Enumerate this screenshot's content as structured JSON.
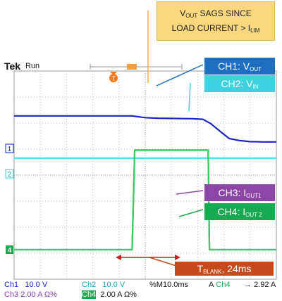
{
  "header": {
    "brand": "Tek",
    "status": "Run"
  },
  "annotation": {
    "line1": "V",
    "line1_sub": "OUT",
    "line1_rest": " SAGS SINCE",
    "line2": "LOAD CURRENT > I",
    "line2_sub": "LIM"
  },
  "labels": {
    "ch1": {
      "main": "CH1: V",
      "sub": "OUT"
    },
    "ch2": {
      "main": "CH2: V",
      "sub": "IN"
    },
    "ch3": {
      "main": "CH3: I",
      "sub": "OUT1"
    },
    "ch4": {
      "main": "CH4: I",
      "sub": "OUT 2"
    },
    "tblank": {
      "main": "T",
      "sub": "BLANK",
      "rest": ", 24ms"
    }
  },
  "markers": {
    "trigger": "T",
    "ch1": "1",
    "ch2": "2",
    "ch4": "4"
  },
  "readouts": {
    "row1": [
      {
        "ch": "Ch1",
        "value": "10.0 V"
      },
      {
        "ch": "Ch2",
        "value": "10.0 V"
      },
      {
        "ch": "%M",
        "value": "10.0ms"
      },
      {
        "ch": "A",
        "value": "Ch4"
      },
      {
        "ch": "→",
        "value": "2.92 A"
      }
    ],
    "row2": [
      {
        "ch": "Ch3",
        "value": "2.00 A Ω%"
      },
      {
        "ch": "Ch4",
        "value": "2.00 A Ω%"
      }
    ]
  },
  "colors": {
    "ch1": "#1b23c9",
    "ch2": "#34e3f0",
    "ch3": "#9a3cc4",
    "ch4": "#35d35e",
    "annotation_bg": "#fbd77e",
    "tblank_bg": "#c64b1c",
    "arrow": "#c02424"
  },
  "chart_data": {
    "type": "line",
    "x_unit": "ms",
    "xlim": [
      -50,
      50
    ],
    "series": [
      {
        "name": "CH1: VOUT",
        "x": [
          -50,
          -5,
          0,
          5,
          10,
          18,
          22,
          25,
          29,
          32,
          36,
          40,
          45,
          50
        ],
        "y": [
          12.5,
          12.5,
          11.8,
          11.6,
          11.5,
          11.4,
          11.2,
          9.5,
          6.2,
          3.8,
          3.0,
          2.6,
          2.5,
          2.5
        ]
      },
      {
        "name": "CH2: VIN",
        "x": [
          -50,
          50
        ],
        "y": [
          6.0,
          6.0
        ]
      },
      {
        "name": "CH3: IOUT1",
        "x": [
          -50,
          -5,
          -4,
          24,
          24.5,
          50
        ],
        "y": [
          0,
          0,
          9.0,
          9.0,
          0,
          0
        ]
      },
      {
        "name": "CH4: IOUT 2",
        "x": [
          -50,
          -5,
          -4,
          24,
          24.5,
          50
        ],
        "y": [
          0,
          0,
          9.0,
          9.0,
          0,
          0
        ]
      }
    ],
    "blanking_interval": {
      "label": "TBLANK, 24ms",
      "start": 0,
      "end": 24
    }
  }
}
